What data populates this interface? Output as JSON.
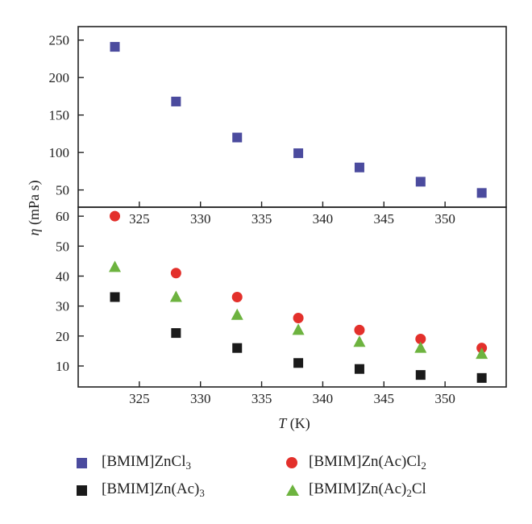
{
  "chart_data": {
    "type": "scatter",
    "y_axis_label": "η (mPa s)",
    "x_axis_label": "T (K)",
    "panels": [
      {
        "name": "top",
        "xlim": [
          320,
          355
        ],
        "ylim": [
          27,
          268
        ],
        "yticks": [
          50,
          100,
          150,
          200,
          250
        ],
        "xticks": [
          325,
          330,
          335,
          340,
          345,
          350
        ],
        "series": [
          {
            "name": "[BMIM]ZnCl3",
            "marker": "square",
            "color": "#4b4b9e",
            "x": [
              323,
              328,
              333,
              338,
              343,
              348,
              353
            ],
            "y": [
              241,
              168,
              120,
              99,
              80,
              61,
              46
            ]
          }
        ]
      },
      {
        "name": "bottom",
        "xlim": [
          320,
          355
        ],
        "ylim": [
          3,
          63
        ],
        "yticks": [
          10,
          20,
          30,
          40,
          50,
          60
        ],
        "xticks": [
          325,
          330,
          335,
          340,
          345,
          350
        ],
        "series": [
          {
            "name": "[BMIM]Zn(Ac)Cl2",
            "marker": "circle",
            "color": "#e3302b",
            "x": [
              323,
              328,
              333,
              338,
              343,
              348,
              353
            ],
            "y": [
              60,
              41,
              33,
              26,
              22,
              19,
              16
            ]
          },
          {
            "name": "[BMIM]Zn(Ac)2Cl",
            "marker": "triangle",
            "color": "#6db33f",
            "x": [
              323,
              328,
              333,
              338,
              343,
              348,
              353
            ],
            "y": [
              43,
              33,
              27,
              22,
              18,
              16,
              14
            ]
          },
          {
            "name": "[BMIM]Zn(Ac)3",
            "marker": "square",
            "color": "#1a1a1a",
            "x": [
              323,
              328,
              333,
              338,
              343,
              348,
              353
            ],
            "y": [
              33,
              21,
              16,
              11,
              9,
              7,
              6
            ]
          }
        ]
      }
    ]
  },
  "legend": {
    "zncl3": {
      "prefix": "[BMIM]ZnCl",
      "sub": "3",
      "suffix": ""
    },
    "zn_ac3": {
      "prefix": "[BMIM]Zn(Ac)",
      "sub": "3",
      "suffix": ""
    },
    "zn_ac_cl2": {
      "prefix": "[BMIM]Zn(Ac)Cl",
      "sub": "2",
      "suffix": ""
    },
    "zn_ac2_cl": {
      "prefix": "[BMIM]Zn(Ac)",
      "sub": "2",
      "suffix": "Cl"
    }
  }
}
